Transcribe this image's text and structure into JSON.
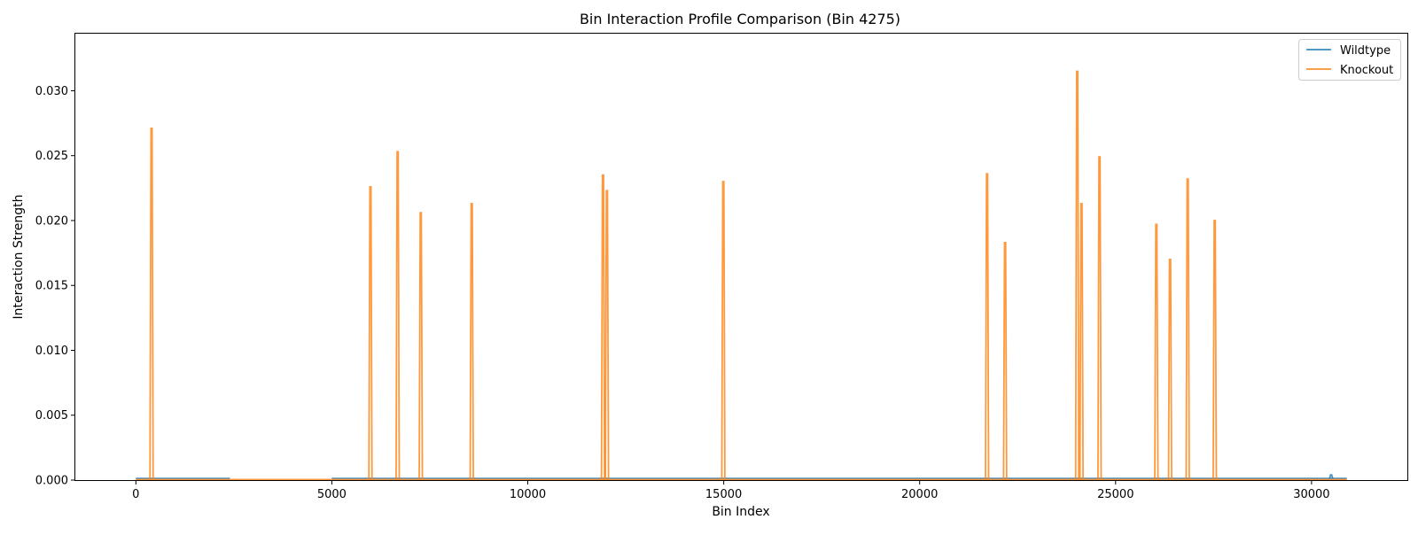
{
  "chart_data": {
    "type": "line",
    "title": "Bin Interaction Profile Comparison (Bin 4275)",
    "xlabel": "Bin Index",
    "ylabel": "Interaction Strength",
    "xlim": [
      -1545,
      32445
    ],
    "ylim": [
      0,
      0.0344
    ],
    "x_ticks": [
      0,
      5000,
      10000,
      15000,
      20000,
      25000,
      30000
    ],
    "x_tick_labels": [
      "0",
      "5000",
      "10000",
      "15000",
      "20000",
      "25000",
      "30000"
    ],
    "y_ticks": [
      0,
      0.005,
      0.01,
      0.015,
      0.02,
      0.025,
      0.03
    ],
    "y_tick_labels": [
      "0.000",
      "0.005",
      "0.010",
      "0.015",
      "0.020",
      "0.025",
      "0.030"
    ],
    "grid": false,
    "legend_position": "top-right",
    "series": [
      {
        "name": "Wildtype",
        "color": "#1f77b4",
        "baseline": 0.00012,
        "x_range": [
          0,
          30900
        ],
        "gap_ranges": [
          [
            2400,
            5000
          ]
        ],
        "peaks": [
          {
            "x": 30500,
            "y": 0.0004
          }
        ]
      },
      {
        "name": "Knockout",
        "color": "#ff7f0e",
        "baseline": 3e-05,
        "x_range": [
          0,
          30900
        ],
        "peaks": [
          {
            "x": 400,
            "y": 0.0271
          },
          {
            "x": 5985,
            "y": 0.0226
          },
          {
            "x": 6680,
            "y": 0.0253
          },
          {
            "x": 7270,
            "y": 0.0206
          },
          {
            "x": 8570,
            "y": 0.0213
          },
          {
            "x": 11920,
            "y": 0.0235
          },
          {
            "x": 12020,
            "y": 0.0223
          },
          {
            "x": 14990,
            "y": 0.023
          },
          {
            "x": 21720,
            "y": 0.0236
          },
          {
            "x": 22180,
            "y": 0.0183
          },
          {
            "x": 24020,
            "y": 0.0315
          },
          {
            "x": 24130,
            "y": 0.0213
          },
          {
            "x": 24590,
            "y": 0.0249
          },
          {
            "x": 26040,
            "y": 0.0197
          },
          {
            "x": 26390,
            "y": 0.017
          },
          {
            "x": 26840,
            "y": 0.0232
          },
          {
            "x": 27530,
            "y": 0.02
          }
        ]
      }
    ]
  }
}
